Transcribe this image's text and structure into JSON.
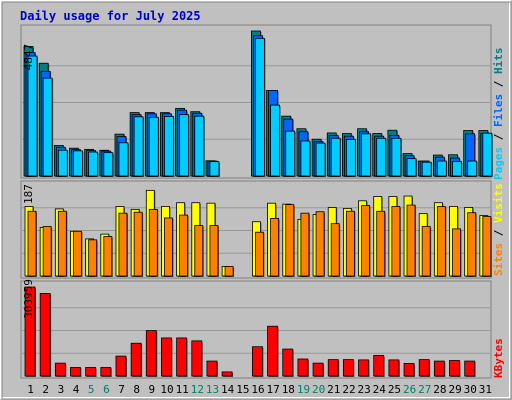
{
  "title": "Daily usage for July 2025",
  "colors": {
    "pages": "#00ccff",
    "files": "#0066ff",
    "hits": "#008080",
    "sites": "#ff8000",
    "visits": "#ffff00",
    "kbytes": "#ff0000",
    "title": "#0000cc",
    "weekend_day": "#008066",
    "weekday": "#000000",
    "background": "#c0c0c0",
    "border": "#808080"
  },
  "axis_max": {
    "hits": "4847",
    "visits": "187",
    "kbytes": "303959"
  },
  "right_labels": {
    "panel1": [
      {
        "key": "pages",
        "text": "Pages"
      },
      {
        "key": "sep",
        "text": " / "
      },
      {
        "key": "files",
        "text": "Files"
      },
      {
        "key": "sep",
        "text": " / "
      },
      {
        "key": "hits",
        "text": "Hits"
      }
    ],
    "panel2": [
      {
        "key": "sites",
        "text": "Sites"
      },
      {
        "key": "sep",
        "text": " / "
      },
      {
        "key": "visits",
        "text": "Visits"
      }
    ],
    "panel3": [
      {
        "key": "kbytes",
        "text": "KBytes"
      }
    ]
  },
  "chart_data": {
    "type": "bar",
    "title": "Daily usage for July 2025",
    "categories": [
      "1",
      "2",
      "3",
      "4",
      "5",
      "6",
      "7",
      "8",
      "9",
      "10",
      "11",
      "12",
      "13",
      "14",
      "15",
      "16",
      "17",
      "18",
      "19",
      "20",
      "21",
      "22",
      "23",
      "24",
      "25",
      "26",
      "27",
      "28",
      "29",
      "30",
      "31"
    ],
    "weekend_days": [
      "5",
      "6",
      "12",
      "13",
      "19",
      "20",
      "26",
      "27"
    ],
    "panels": [
      {
        "id": "hits_files_pages",
        "ymax": 4847,
        "series": [
          {
            "name": "Hits",
            "values": [
              4330,
              3770,
              1020,
              930,
              890,
              860,
              1400,
              2120,
              2120,
              2120,
              2260,
              2150,
              510,
              0,
              0,
              4847,
              2860,
              2000,
              1580,
              1230,
              1440,
              1420,
              1580,
              1420,
              1530,
              750,
              500,
              700,
              710,
              1520,
              1520
            ]
          },
          {
            "name": "Files",
            "values": [
              4130,
              3500,
              960,
              880,
              850,
              830,
              1320,
              2050,
              2080,
              2080,
              2200,
              2100,
              500,
              0,
              0,
              4690,
              2860,
              1900,
              1480,
              1150,
              1350,
              1330,
              1480,
              1330,
              1360,
              680,
              500,
              630,
              600,
              1410,
              1430
            ]
          },
          {
            "name": "Pages",
            "values": [
              4010,
              3270,
              860,
              840,
              800,
              780,
              1110,
              1980,
              1960,
              1990,
              2050,
              2000,
              480,
              0,
              0,
              4600,
              2370,
              1500,
              1170,
              1100,
              1260,
              1220,
              1410,
              1260,
              1260,
              580,
              460,
              500,
              480,
              500,
              1430
            ]
          }
        ]
      },
      {
        "id": "visits_sites",
        "ymax": 187,
        "series": [
          {
            "name": "Visits",
            "values": [
              146,
              102,
              141,
              94,
              78,
              88,
              146,
              140,
              180,
              146,
              154,
              154,
              153,
              20,
              0,
              114,
              153,
              151,
              119,
              129,
              144,
              142,
              158,
              167,
              167,
              168,
              131,
              154,
              146,
              144,
              127
            ]
          },
          {
            "name": "Sites",
            "values": [
              136,
              104,
              136,
              94,
              76,
              83,
              132,
              134,
              140,
              122,
              128,
              106,
              106,
              20,
              0,
              92,
              121,
              150,
              132,
              135,
              110,
              136,
              148,
              136,
              146,
              149,
              104,
              146,
              99,
              133,
              125
            ]
          }
        ]
      },
      {
        "id": "kbytes",
        "ymax": 303959,
        "series": [
          {
            "name": "KBytes",
            "values": [
              303959,
              282000,
              44000,
              29000,
              29000,
              29000,
              68000,
              112000,
              155000,
              130000,
              130000,
              120000,
              51000,
              14000,
              0,
              100000,
              170000,
              92000,
              58000,
              44000,
              56000,
              56000,
              55000,
              70000,
              55000,
              43000,
              56000,
              51000,
              53000,
              51000,
              0
            ]
          }
        ]
      }
    ]
  }
}
